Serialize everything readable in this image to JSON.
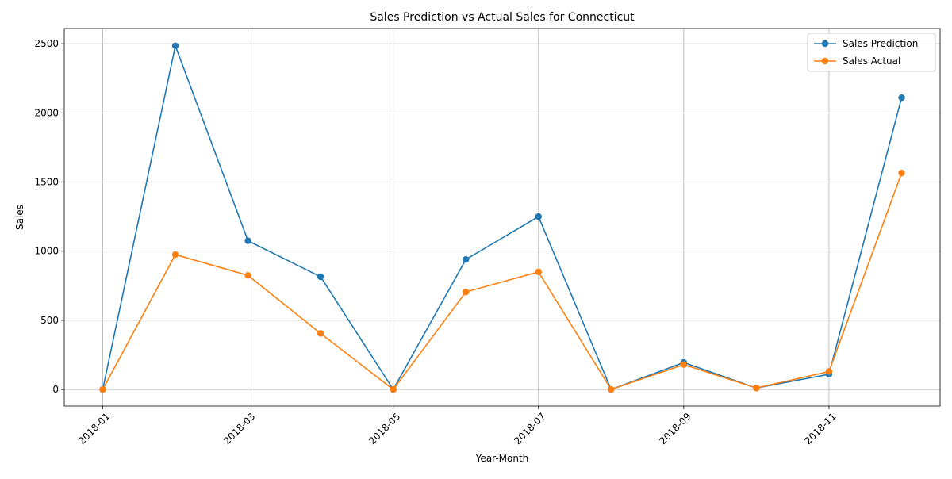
{
  "chart_data": {
    "type": "line",
    "title": "Sales Prediction vs Actual Sales for Connecticut",
    "xlabel": "Year-Month",
    "ylabel": "Sales",
    "x": [
      "2018-01",
      "2018-02",
      "2018-03",
      "2018-04",
      "2018-05",
      "2018-06",
      "2018-07",
      "2018-08",
      "2018-09",
      "2018-10",
      "2018-11",
      "2018-12"
    ],
    "x_tick_labels": [
      "2018-01",
      "2018-03",
      "2018-05",
      "2018-07",
      "2018-09",
      "2018-11"
    ],
    "y_ticks": [
      0,
      500,
      1000,
      1500,
      2000,
      2500
    ],
    "ylim": [
      -120,
      2610
    ],
    "series": [
      {
        "name": "Sales Prediction",
        "color": "#1f77b4",
        "marker": "circle",
        "values": [
          0,
          2485,
          1075,
          815,
          0,
          940,
          1250,
          0,
          195,
          10,
          110,
          2110
        ]
      },
      {
        "name": "Sales Actual",
        "color": "#ff7f0e",
        "marker": "circle",
        "values": [
          0,
          975,
          825,
          405,
          0,
          705,
          850,
          0,
          180,
          10,
          130,
          1565
        ]
      }
    ],
    "grid": true,
    "legend_position": "top-right"
  }
}
